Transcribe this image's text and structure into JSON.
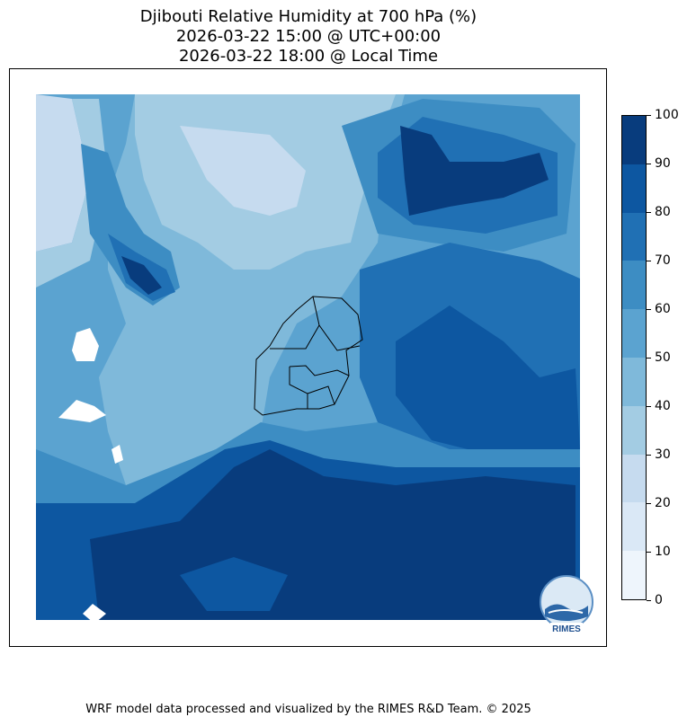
{
  "title": {
    "line1": "Djibouti Relative Humidity at 700 hPa (%)",
    "line2": "2026-03-22 15:00 @ UTC+00:00",
    "line3": "2026-03-22 18:00 @ Local Time"
  },
  "colorbar": {
    "ticks": [
      "0",
      "10",
      "20",
      "30",
      "40",
      "50",
      "60",
      "70",
      "80",
      "90",
      "100"
    ],
    "colors": [
      "#eef5fc",
      "#dae8f6",
      "#c6dbef",
      "#a3cce3",
      "#7fb9da",
      "#5ba3d0",
      "#3d8dc3",
      "#2070b4",
      "#0d57a1",
      "#083c7d"
    ]
  },
  "logo": {
    "text": "RIMES"
  },
  "footer": "WRF model data processed and visualized by the RIMES R&D Team. © 2025"
}
